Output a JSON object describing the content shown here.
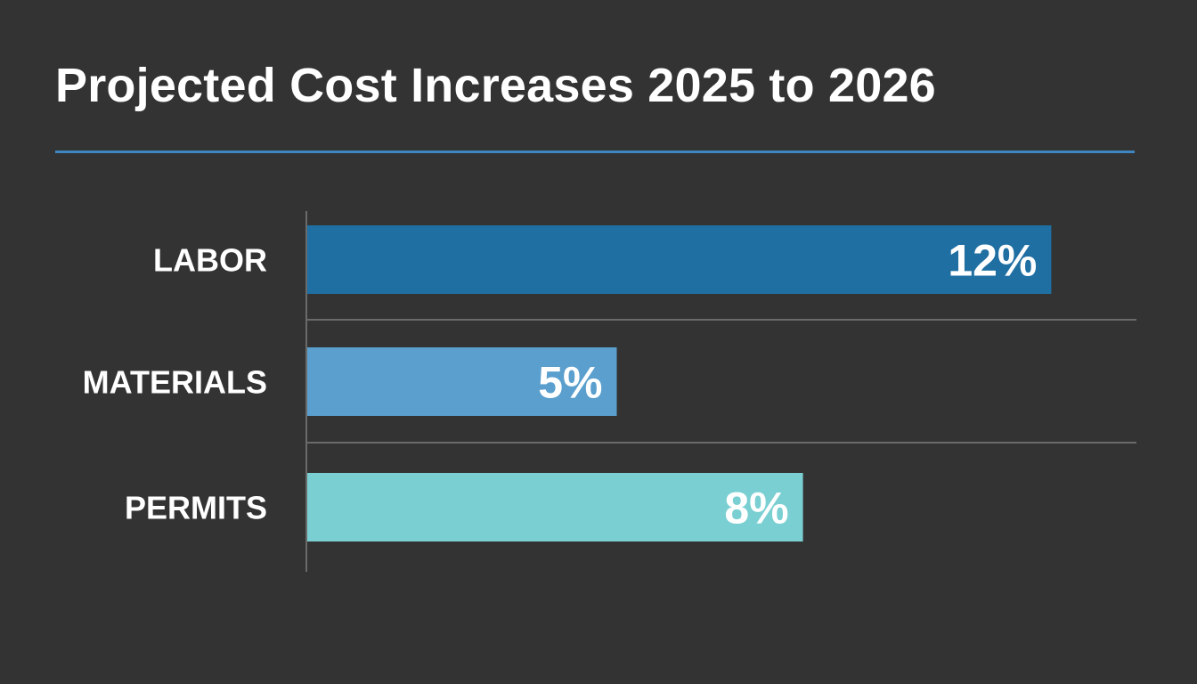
{
  "chart_data": {
    "type": "bar",
    "orientation": "horizontal",
    "title": "Projected Cost Increases 2025 to 2026",
    "categories": [
      "LABOR",
      "MATERIALS",
      "PERMITS"
    ],
    "values": [
      12,
      5,
      8
    ],
    "value_labels": [
      "12%",
      "5%",
      "8%"
    ],
    "unit": "%",
    "colors": [
      "#1f6fa3",
      "#5a9fcd",
      "#7acfd2"
    ],
    "grid": false,
    "legend": "none"
  },
  "theme": {
    "background": "#333333",
    "accent_rule": "#3f86c0",
    "text": "#ffffff",
    "divider": "#6a6a6a"
  }
}
